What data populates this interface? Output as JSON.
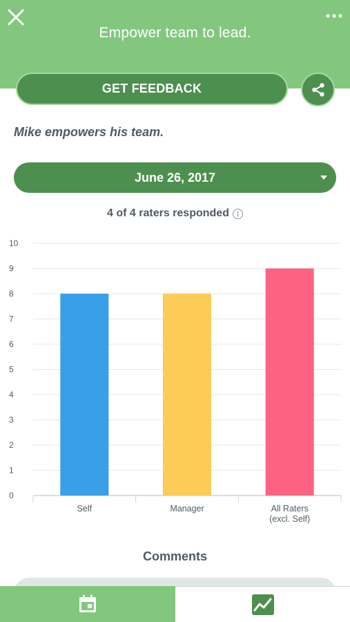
{
  "header": {
    "title": "Empower team to lead.",
    "close_icon": "close-icon",
    "more_icon": "more-horizontal-icon"
  },
  "actions": {
    "get_feedback_label": "GET FEEDBACK",
    "share_icon": "share-icon"
  },
  "subtitle": "Mike empowers his team.",
  "date_select": {
    "selected": "June 26, 2017",
    "icon": "caret-down-icon"
  },
  "raters": {
    "text": "4 of 4 raters responded",
    "info_glyph": "i"
  },
  "chart_data": {
    "type": "bar",
    "categories": [
      "Self",
      "Manager",
      "All Raters (excl. Self)"
    ],
    "category_lines": [
      [
        "Self"
      ],
      [
        "Manager"
      ],
      [
        "All Raters",
        "(excl. Self)"
      ]
    ],
    "values": [
      8,
      8,
      9
    ],
    "colors": [
      "#399fe8",
      "#fdcb57",
      "#fd6283"
    ],
    "yticks": [
      "0",
      "1",
      "2",
      "3",
      "4",
      "5",
      "6",
      "7",
      "8",
      "9",
      "10"
    ],
    "ylim": [
      0,
      10
    ],
    "grid": true
  },
  "comments_heading": "Comments",
  "tabbar": {
    "tabs": [
      {
        "icon": "calendar-icon",
        "active": true
      },
      {
        "icon": "chart-icon",
        "active": false
      }
    ]
  },
  "colors": {
    "header": "#83c77f",
    "button": "#4d8f4f",
    "text": "#4e5b65"
  }
}
